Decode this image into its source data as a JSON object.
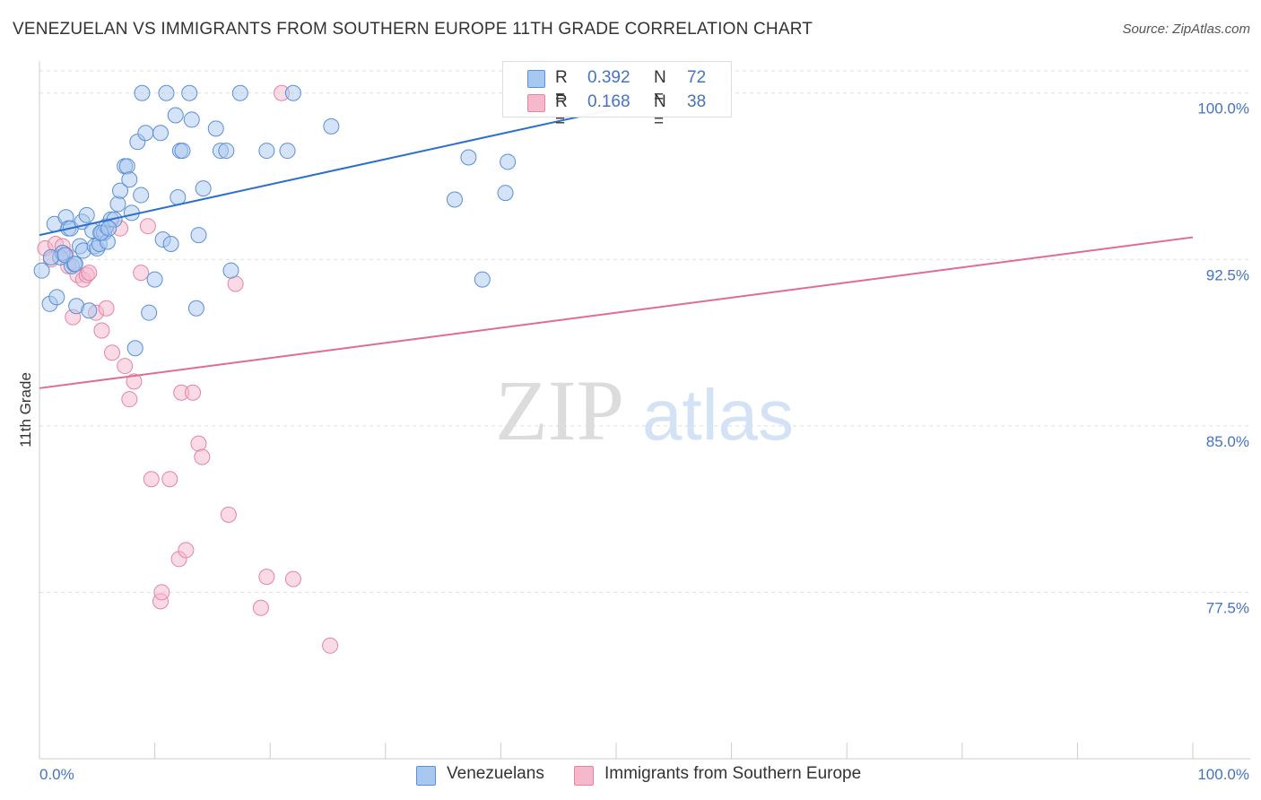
{
  "header": {
    "title": "VENEZUELAN VS IMMIGRANTS FROM SOUTHERN EUROPE 11TH GRADE CORRELATION CHART",
    "source": "Source: ZipAtlas.com"
  },
  "watermark": {
    "zip": "ZIP",
    "atlas": "atlas"
  },
  "legend_top": [
    {
      "r_label": "R =",
      "r_value": "0.392",
      "n_label": "N =",
      "n_value": "72"
    },
    {
      "r_label": "R =",
      "r_value": "0.168",
      "n_label": "N =",
      "n_value": "38"
    }
  ],
  "legend_bottom": [
    {
      "label": "Venezuelans"
    },
    {
      "label": "Immigrants from Southern Europe"
    }
  ],
  "colors": {
    "blue_fill": "#a9c8f0",
    "blue_stroke": "#5b8fd6",
    "blue_line": "#2b6fcf",
    "pink_fill": "#f6b8cb",
    "pink_stroke": "#e484a5",
    "pink_line": "#e06b96",
    "grid": "#dddddd",
    "tick_label": "#4472c4"
  },
  "chart_data": {
    "type": "scatter",
    "title": "VENEZUELAN VS IMMIGRANTS FROM SOUTHERN EUROPE 11TH GRADE CORRELATION CHART",
    "xlabel": "",
    "ylabel": "11th Grade",
    "xlim": [
      0,
      100
    ],
    "ylim": [
      70.0,
      101.0
    ],
    "x_tick_labels": [
      "0.0%",
      "100.0%"
    ],
    "y_ticks": [
      77.5,
      85.0,
      92.5,
      100.0
    ],
    "y_tick_labels": [
      "77.5%",
      "85.0%",
      "92.5%",
      "100.0%"
    ],
    "grid": true,
    "series": [
      {
        "name": "Venezuelans",
        "color": "#5b8fd6",
        "R": 0.392,
        "N": 72,
        "trend": {
          "x": [
            0,
            50
          ],
          "y": [
            93.6,
            99.3
          ]
        },
        "points": [
          [
            0.2,
            92.0
          ],
          [
            0.9,
            90.5
          ],
          [
            1.3,
            94.1
          ],
          [
            1.5,
            90.8
          ],
          [
            1.8,
            92.6
          ],
          [
            2.0,
            92.8
          ],
          [
            2.3,
            94.4
          ],
          [
            2.5,
            93.9
          ],
          [
            2.7,
            93.9
          ],
          [
            2.8,
            92.2
          ],
          [
            3.0,
            92.3
          ],
          [
            3.2,
            90.4
          ],
          [
            3.5,
            93.1
          ],
          [
            3.7,
            94.2
          ],
          [
            3.8,
            92.9
          ],
          [
            4.1,
            94.5
          ],
          [
            4.3,
            90.2
          ],
          [
            4.6,
            93.8
          ],
          [
            4.8,
            93.1
          ],
          [
            5.0,
            93.0
          ],
          [
            5.2,
            93.2
          ],
          [
            5.4,
            93.7
          ],
          [
            5.6,
            93.7
          ],
          [
            5.8,
            94.0
          ],
          [
            5.9,
            93.3
          ],
          [
            6.2,
            94.3
          ],
          [
            6.5,
            94.3
          ],
          [
            6.8,
            95.0
          ],
          [
            7.0,
            95.6
          ],
          [
            7.4,
            96.7
          ],
          [
            7.6,
            96.7
          ],
          [
            7.8,
            96.1
          ],
          [
            8.0,
            94.6
          ],
          [
            8.3,
            88.5
          ],
          [
            8.5,
            97.8
          ],
          [
            8.8,
            95.4
          ],
          [
            8.9,
            100.0
          ],
          [
            9.2,
            98.2
          ],
          [
            9.5,
            90.1
          ],
          [
            10.0,
            91.6
          ],
          [
            10.5,
            98.2
          ],
          [
            10.7,
            93.4
          ],
          [
            11.0,
            100.0
          ],
          [
            11.4,
            93.2
          ],
          [
            11.8,
            99.0
          ],
          [
            12.0,
            95.3
          ],
          [
            12.2,
            97.4
          ],
          [
            12.4,
            97.4
          ],
          [
            13.0,
            100.0
          ],
          [
            13.2,
            98.8
          ],
          [
            13.6,
            90.3
          ],
          [
            13.8,
            93.6
          ],
          [
            14.2,
            95.7
          ],
          [
            15.3,
            98.4
          ],
          [
            15.7,
            97.4
          ],
          [
            16.2,
            97.4
          ],
          [
            16.6,
            92.0
          ],
          [
            17.4,
            100.0
          ],
          [
            19.7,
            97.4
          ],
          [
            21.5,
            97.4
          ],
          [
            22.0,
            100.0
          ],
          [
            25.3,
            98.5
          ],
          [
            36.0,
            95.2
          ],
          [
            37.2,
            97.1
          ],
          [
            38.4,
            91.6
          ],
          [
            40.4,
            95.5
          ],
          [
            40.6,
            96.9
          ],
          [
            1.0,
            92.6
          ],
          [
            2.2,
            92.7
          ],
          [
            3.1,
            92.3
          ],
          [
            5.3,
            93.7
          ],
          [
            6.0,
            93.9
          ]
        ]
      },
      {
        "name": "Immigrants from Southern Europe",
        "color": "#e484a5",
        "R": 0.168,
        "N": 38,
        "trend": {
          "x": [
            0,
            100
          ],
          "y": [
            86.7,
            93.5
          ]
        },
        "points": [
          [
            0.5,
            93.0
          ],
          [
            1.0,
            92.5
          ],
          [
            1.4,
            93.2
          ],
          [
            2.0,
            93.1
          ],
          [
            2.3,
            92.7
          ],
          [
            2.5,
            92.2
          ],
          [
            2.9,
            89.9
          ],
          [
            3.3,
            91.8
          ],
          [
            3.8,
            91.6
          ],
          [
            4.1,
            91.8
          ],
          [
            4.3,
            91.9
          ],
          [
            4.9,
            90.1
          ],
          [
            5.4,
            89.3
          ],
          [
            5.8,
            90.3
          ],
          [
            6.3,
            88.3
          ],
          [
            7.0,
            93.9
          ],
          [
            7.4,
            87.7
          ],
          [
            7.8,
            86.2
          ],
          [
            8.2,
            87.0
          ],
          [
            8.8,
            91.9
          ],
          [
            9.4,
            94.0
          ],
          [
            9.7,
            82.6
          ],
          [
            10.5,
            77.1
          ],
          [
            10.6,
            77.5
          ],
          [
            11.3,
            82.6
          ],
          [
            12.1,
            79.0
          ],
          [
            12.3,
            86.5
          ],
          [
            12.7,
            79.4
          ],
          [
            13.3,
            86.5
          ],
          [
            13.8,
            84.2
          ],
          [
            14.1,
            83.6
          ],
          [
            16.4,
            81.0
          ],
          [
            17.0,
            91.4
          ],
          [
            19.2,
            76.8
          ],
          [
            19.7,
            78.2
          ],
          [
            21.0,
            100.0
          ],
          [
            22.0,
            78.1
          ],
          [
            25.2,
            75.1
          ]
        ]
      }
    ]
  }
}
